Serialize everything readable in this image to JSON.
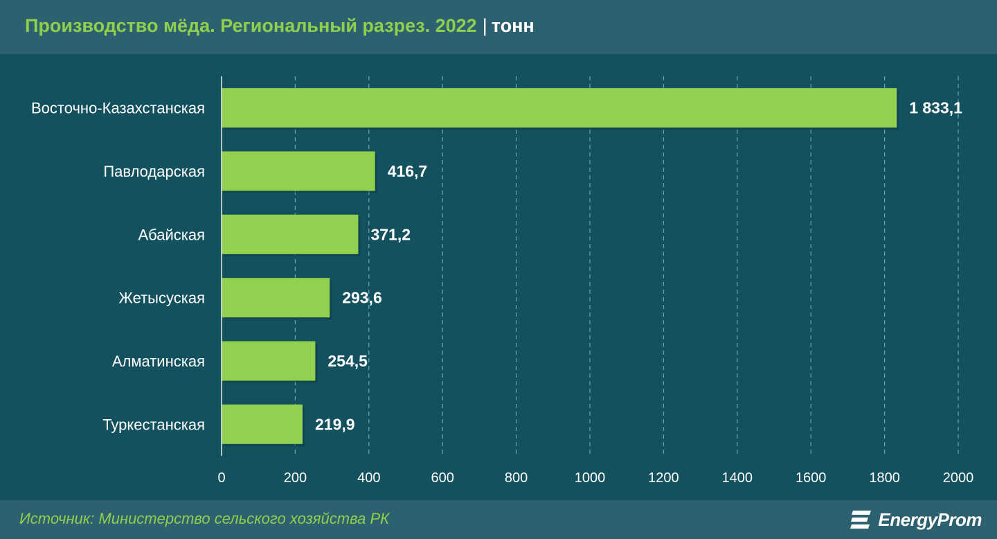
{
  "header": {
    "title": "Производство мёда. Региональный разрез. 2022",
    "separator": "|",
    "unit": "тонн"
  },
  "colors": {
    "background": "#14515f",
    "header": "#2d6170",
    "bar": "#92d050",
    "title": "#8fcf4e",
    "text": "#ffffff"
  },
  "chart_data": {
    "type": "bar",
    "orientation": "horizontal",
    "categories": [
      "Восточно-Казахстанская",
      "Павлодарская",
      "Абайская",
      "Жетысуская",
      "Алматинская",
      "Туркестанская"
    ],
    "values": [
      1833.1,
      416.7,
      371.2,
      293.6,
      254.5,
      219.9
    ],
    "value_labels": [
      "1 833,1",
      "416,7",
      "371,2",
      "293,6",
      "254,5",
      "219,9"
    ],
    "xlim": [
      0,
      2000
    ],
    "xticks": [
      0,
      200,
      400,
      600,
      800,
      1000,
      1200,
      1400,
      1600,
      1800,
      2000
    ],
    "grid": true,
    "legend": "none"
  },
  "footer": {
    "source": "Источник: Министерство сельского хозяйства РК",
    "logo_text": "EnergyProm",
    "logo_icon": "energyprom-logo-icon"
  }
}
